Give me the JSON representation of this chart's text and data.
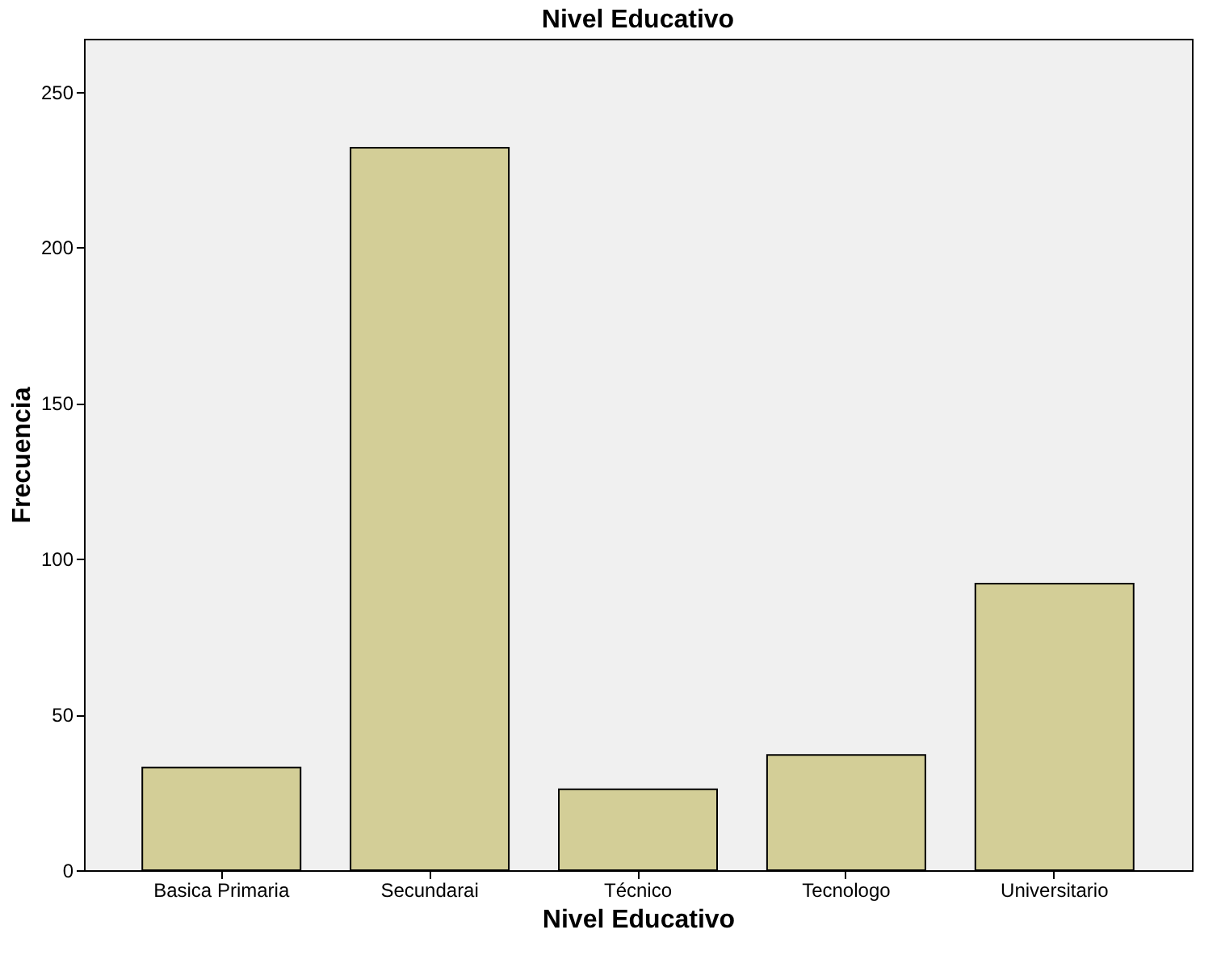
{
  "chart_data": {
    "type": "bar",
    "title": "Nivel Educativo",
    "xlabel": "Nivel Educativo",
    "ylabel": "Frecuencia",
    "categories": [
      "Basica Primaria",
      "Secundarai",
      "Técnico",
      "Tecnologo",
      "Universitario"
    ],
    "values": [
      33,
      232,
      26,
      37,
      92
    ],
    "color": "#d3ce97",
    "ylim": [
      0,
      267
    ],
    "yticks": [
      0,
      50,
      100,
      150,
      200,
      250
    ],
    "grid": false
  }
}
